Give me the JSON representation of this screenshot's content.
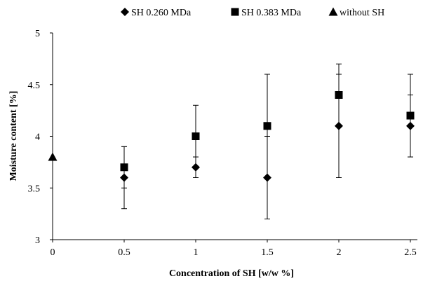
{
  "chart_data": {
    "type": "scatter",
    "title": "",
    "xlabel": "Concentration of SH [w/w %]",
    "ylabel": "Moisture content [%]",
    "xlim": [
      0,
      2.5
    ],
    "ylim": [
      3,
      5
    ],
    "x_ticks": [
      0,
      0.5,
      1,
      1.5,
      2,
      2.5
    ],
    "x_tick_labels": [
      "0",
      "0.5",
      "1",
      "1.5",
      "2",
      "2.5"
    ],
    "y_ticks": [
      3,
      3.5,
      4,
      4.5,
      5
    ],
    "y_tick_labels": [
      "3",
      "3.5",
      "4",
      "4.5",
      "5"
    ],
    "grid": false,
    "legend_position": "top",
    "series": [
      {
        "name": "SH 0.260 MDa",
        "marker": "diamond",
        "color": "#000000",
        "points": [
          {
            "x": 0.5,
            "y": 3.6,
            "err_low": 3.3,
            "err_high": 3.9
          },
          {
            "x": 1.0,
            "y": 3.7,
            "err_low": 3.6,
            "err_high": 3.8
          },
          {
            "x": 1.5,
            "y": 3.6,
            "err_low": 3.2,
            "err_high": 4.0
          },
          {
            "x": 2.0,
            "y": 4.1,
            "err_low": 3.6,
            "err_high": 4.6
          },
          {
            "x": 2.5,
            "y": 4.1,
            "err_low": 3.8,
            "err_high": 4.4
          }
        ]
      },
      {
        "name": "SH 0.383 MDa",
        "marker": "square",
        "color": "#000000",
        "points": [
          {
            "x": 0.5,
            "y": 3.7,
            "err_low": 3.5,
            "err_high": 3.9
          },
          {
            "x": 1.0,
            "y": 4.0,
            "err_low": 3.7,
            "err_high": 4.3
          },
          {
            "x": 1.5,
            "y": 4.1,
            "err_low": 3.6,
            "err_high": 4.6
          },
          {
            "x": 2.0,
            "y": 4.4,
            "err_low": 4.1,
            "err_high": 4.7
          },
          {
            "x": 2.5,
            "y": 4.2,
            "err_low": 3.8,
            "err_high": 4.6
          }
        ]
      },
      {
        "name": "without SH",
        "marker": "triangle",
        "color": "#000000",
        "points": [
          {
            "x": 0,
            "y": 3.8
          }
        ]
      }
    ]
  }
}
